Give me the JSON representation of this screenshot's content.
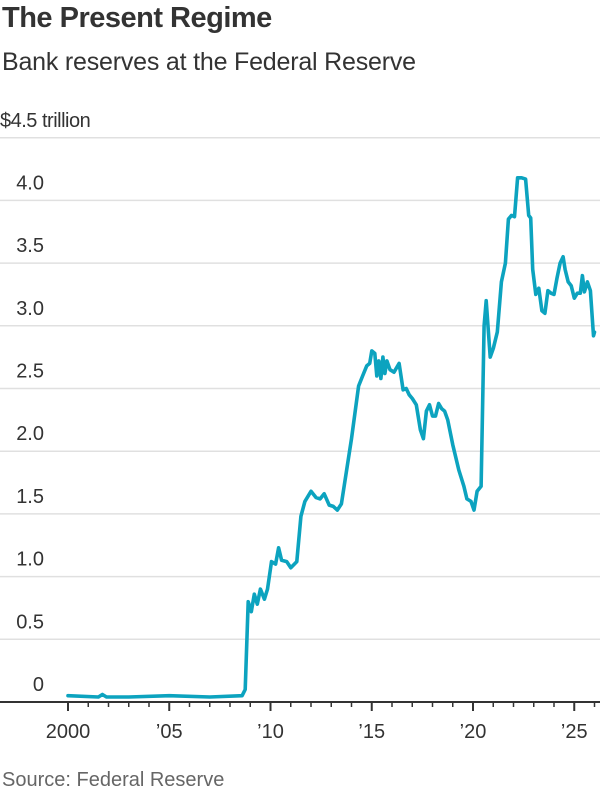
{
  "header": {
    "title": "The Present Regime",
    "subtitle": "Bank reserves at the Federal Reserve",
    "unit_label": "$4.5 trillion"
  },
  "footer": {
    "source": "Source: Federal Reserve"
  },
  "colors": {
    "line": "#0ca3bf",
    "grid": "#e0e0e0",
    "axis": "#333333",
    "text": "#333333",
    "source_text": "#666666"
  },
  "chart_data": {
    "type": "line",
    "title": "The Present Regime",
    "subtitle": "Bank reserves at the Federal Reserve",
    "xlabel": "",
    "ylabel": "$ trillion",
    "xlim": [
      2000,
      2026
    ],
    "ylim": [
      0,
      4.5
    ],
    "grid": true,
    "legend": "none",
    "y_ticks": [
      {
        "value": 0,
        "label": "0"
      },
      {
        "value": 0.5,
        "label": "0.5"
      },
      {
        "value": 1.0,
        "label": "1.0"
      },
      {
        "value": 1.5,
        "label": "1.5"
      },
      {
        "value": 2.0,
        "label": "2.0"
      },
      {
        "value": 2.5,
        "label": "2.5"
      },
      {
        "value": 3.0,
        "label": "3.0"
      },
      {
        "value": 3.5,
        "label": "3.5"
      },
      {
        "value": 4.0,
        "label": "4.0"
      },
      {
        "value": 4.5,
        "label": "$4.5 trillion"
      }
    ],
    "x_ticks": [
      {
        "value": 2000,
        "label": "2000"
      },
      {
        "value": 2005,
        "label": "’05"
      },
      {
        "value": 2010,
        "label": "’10"
      },
      {
        "value": 2015,
        "label": "’15"
      },
      {
        "value": 2020,
        "label": "’20"
      },
      {
        "value": 2025,
        "label": "’25"
      }
    ],
    "source": "Source: Federal Reserve",
    "series": [
      {
        "name": "Bank reserves",
        "x": [
          2000.0,
          2001.5,
          2001.7,
          2001.9,
          2003.0,
          2005.0,
          2007.0,
          2008.6,
          2008.75,
          2008.9,
          2009.05,
          2009.2,
          2009.35,
          2009.5,
          2009.7,
          2009.85,
          2010.05,
          2010.25,
          2010.4,
          2010.55,
          2010.8,
          2011.0,
          2011.3,
          2011.5,
          2011.7,
          2012.0,
          2012.25,
          2012.45,
          2012.65,
          2012.9,
          2013.1,
          2013.3,
          2013.5,
          2014.0,
          2014.35,
          2014.55,
          2014.75,
          2014.9,
          2015.0,
          2015.15,
          2015.25,
          2015.35,
          2015.45,
          2015.55,
          2015.65,
          2015.75,
          2015.9,
          2016.1,
          2016.35,
          2016.55,
          2016.7,
          2016.85,
          2017.0,
          2017.2,
          2017.4,
          2017.55,
          2017.7,
          2017.85,
          2018.0,
          2018.15,
          2018.3,
          2018.45,
          2018.6,
          2018.75,
          2019.0,
          2019.3,
          2019.55,
          2019.7,
          2019.9,
          2020.05,
          2020.2,
          2020.4,
          2020.55,
          2020.65,
          2020.85,
          2021.0,
          2021.2,
          2021.4,
          2021.6,
          2021.75,
          2021.9,
          2022.05,
          2022.2,
          2022.4,
          2022.6,
          2022.75,
          2022.85,
          2022.95,
          2023.1,
          2023.25,
          2023.4,
          2023.55,
          2023.7,
          2023.85,
          2024.0,
          2024.15,
          2024.3,
          2024.45,
          2024.55,
          2024.7,
          2024.85,
          2025.0,
          2025.15,
          2025.3,
          2025.4,
          2025.5,
          2025.65,
          2025.8,
          2025.95,
          2026.0
        ],
        "values": [
          0.05,
          0.04,
          0.06,
          0.04,
          0.04,
          0.05,
          0.04,
          0.05,
          0.1,
          0.8,
          0.72,
          0.86,
          0.78,
          0.9,
          0.82,
          0.9,
          1.12,
          1.1,
          1.23,
          1.13,
          1.12,
          1.07,
          1.12,
          1.48,
          1.6,
          1.68,
          1.63,
          1.62,
          1.66,
          1.57,
          1.56,
          1.53,
          1.58,
          2.1,
          2.52,
          2.6,
          2.68,
          2.7,
          2.8,
          2.78,
          2.6,
          2.72,
          2.58,
          2.75,
          2.62,
          2.72,
          2.65,
          2.63,
          2.7,
          2.49,
          2.5,
          2.45,
          2.42,
          2.37,
          2.17,
          2.1,
          2.32,
          2.37,
          2.28,
          2.28,
          2.38,
          2.34,
          2.32,
          2.25,
          2.05,
          1.85,
          1.72,
          1.62,
          1.6,
          1.53,
          1.68,
          1.72,
          3.0,
          3.2,
          2.75,
          2.82,
          2.95,
          3.35,
          3.5,
          3.85,
          3.88,
          3.87,
          4.18,
          4.18,
          4.17,
          3.88,
          3.86,
          3.45,
          3.25,
          3.3,
          3.12,
          3.1,
          3.28,
          3.26,
          3.25,
          3.38,
          3.5,
          3.55,
          3.45,
          3.35,
          3.32,
          3.22,
          3.26,
          3.26,
          3.4,
          3.27,
          3.35,
          3.28,
          2.92,
          2.95
        ]
      }
    ]
  }
}
